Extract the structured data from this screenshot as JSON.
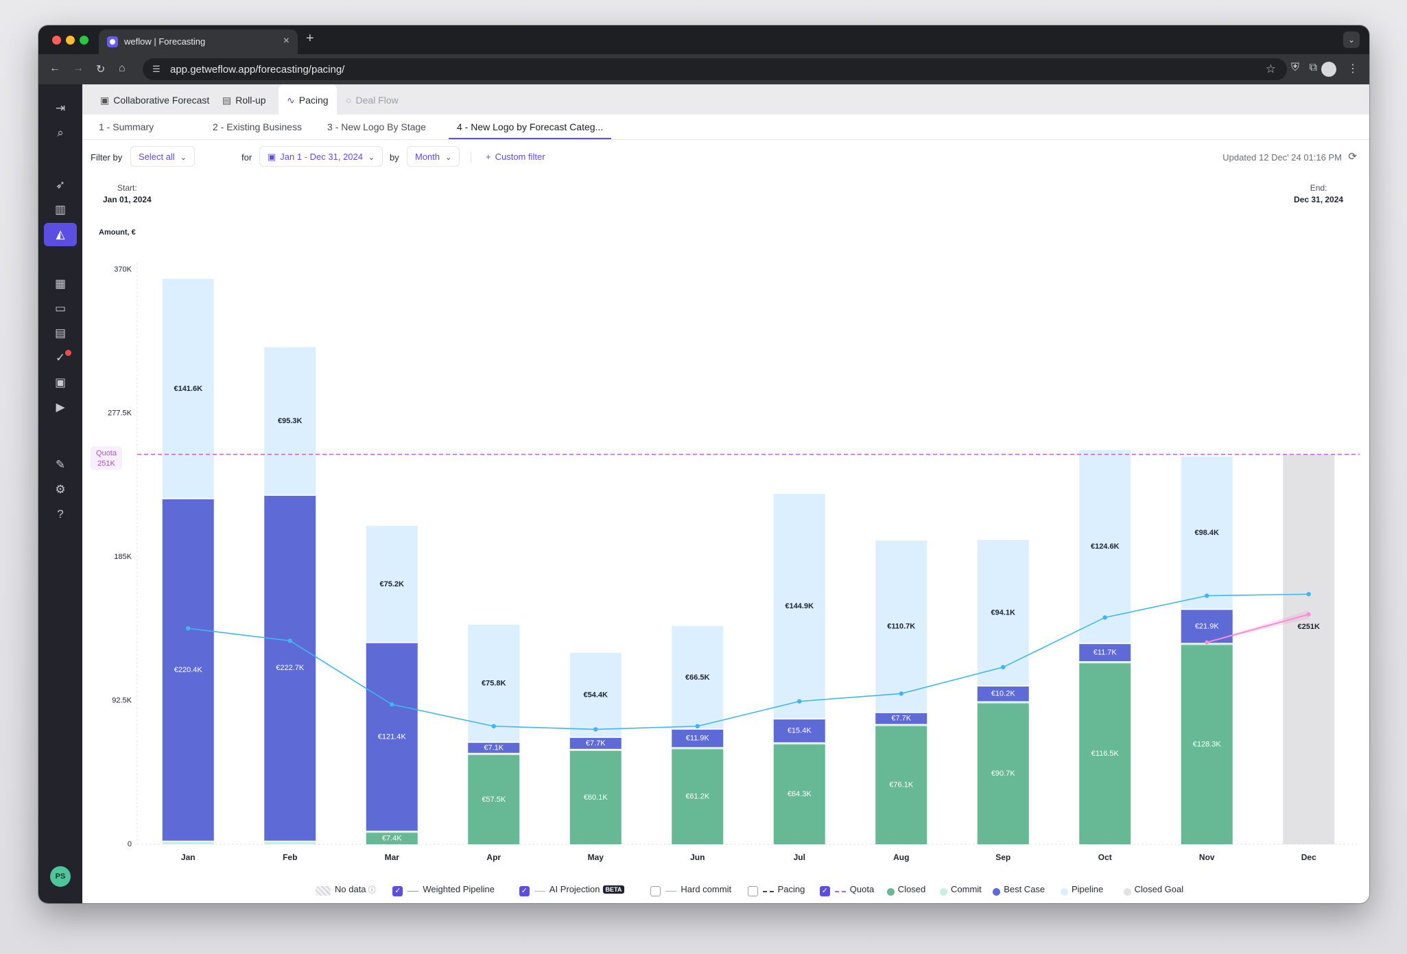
{
  "browser": {
    "tab_title": "weflow | Forecasting",
    "url": "app.getweflow.app/forecasting/pacing/"
  },
  "topnav": {
    "tabs": [
      {
        "label": "Collaborative Forecast",
        "icon": "forecast-icon"
      },
      {
        "label": "Roll-up",
        "icon": "rollup-icon"
      },
      {
        "label": "Pacing",
        "icon": "pacing-icon",
        "active": true
      },
      {
        "label": "Deal Flow",
        "icon": "search-icon",
        "disabled": true
      }
    ]
  },
  "subtabs": [
    {
      "label": "1 - Summary"
    },
    {
      "label": "2 - Existing Business"
    },
    {
      "label": "3 - New Logo By Stage"
    },
    {
      "label": "4 - New Logo by Forecast Categ...",
      "active": true
    }
  ],
  "filters": {
    "filter_by_label": "Filter by",
    "filter_by_value": "Select all",
    "for_label": "for",
    "date_range": "Jan 1 - Dec 31, 2024",
    "by_label": "by",
    "granularity": "Month",
    "custom_filter": "Custom filter",
    "updated": "Updated 12 Dec' 24 01:16 PM"
  },
  "range": {
    "start_label": "Start:",
    "start_date": "Jan 01, 2024",
    "end_label": "End:",
    "end_date": "Dec 31, 2024"
  },
  "quota_tag": {
    "label": "Quota",
    "value": "251K"
  },
  "sidebar": {
    "avatar": "PS"
  },
  "legend": [
    {
      "label": "No data",
      "kind": "hatch"
    },
    {
      "label": "Weighted Pipeline",
      "checked": true,
      "kind": "line",
      "color": "#3fb6ee"
    },
    {
      "label": "AI Projection",
      "checked": true,
      "kind": "line",
      "color": "#f58fd0",
      "badge": "BETA"
    },
    {
      "label": "Hard commit",
      "checked": false,
      "kind": "line",
      "color": "#6fd3c8"
    },
    {
      "label": "Pacing",
      "checked": false,
      "kind": "dash",
      "color": "#444444"
    },
    {
      "label": "Quota",
      "checked": true,
      "kind": "dash",
      "color": "#c75ce0"
    },
    {
      "label": "Closed",
      "kind": "dot",
      "color": "#67b894"
    },
    {
      "label": "Commit",
      "kind": "dot",
      "color": "#c8f0e2"
    },
    {
      "label": "Best Case",
      "kind": "dot",
      "color": "#5e6ad6"
    },
    {
      "label": "Pipeline",
      "kind": "dot",
      "color": "#dcefff"
    },
    {
      "label": "Closed Goal",
      "kind": "dot",
      "color": "#e2e2e4"
    }
  ],
  "chart_data": {
    "type": "bar",
    "ylabel": "Amount, €",
    "ylim": [
      0,
      370
    ],
    "yticks": [
      "0",
      "92.5K",
      "185K",
      "277.5K",
      "370K"
    ],
    "ytick_values": [
      0,
      92.5,
      185,
      277.5,
      370
    ],
    "categories": [
      "Jan",
      "Feb",
      "Mar",
      "Apr",
      "May",
      "Jun",
      "Jul",
      "Aug",
      "Sep",
      "Oct",
      "Nov",
      "Dec"
    ],
    "series": [
      {
        "name": "Closed",
        "color": "#67b894",
        "values": [
          0,
          0,
          7.4,
          57.5,
          60.1,
          61.2,
          64.3,
          76.1,
          90.7,
          116.5,
          128.3,
          0
        ],
        "labels": [
          "",
          "",
          "€7.4K",
          "€57.5K",
          "€60.1K",
          "€61.2K",
          "€64.3K",
          "€76.1K",
          "€90.7K",
          "€116.5K",
          "€128.3K",
          ""
        ]
      },
      {
        "name": "Commit",
        "color": "#c8f0e2",
        "values": [
          2,
          2,
          1,
          1,
          1,
          1,
          1,
          1,
          1,
          1,
          1,
          0
        ]
      },
      {
        "name": "Best Case",
        "color": "#5e6ad6",
        "values": [
          220.4,
          222.7,
          121.4,
          7.1,
          7.7,
          11.9,
          15.4,
          7.7,
          10.2,
          11.7,
          21.9,
          0
        ],
        "labels": [
          "€220.4K",
          "€222.7K",
          "€121.4K",
          "€7.1K",
          "€7.7K",
          "€11.9K",
          "€15.4K",
          "€7.7K",
          "€10.2K",
          "€11.7K",
          "€21.9K",
          ""
        ]
      },
      {
        "name": "Pipeline",
        "color": "#dcefff",
        "values": [
          141.6,
          95.3,
          75.2,
          75.8,
          54.4,
          66.5,
          144.9,
          110.7,
          94.1,
          124.6,
          98.4,
          0
        ],
        "labels": [
          "€141.6K",
          "€95.3K",
          "€75.2K",
          "€75.8K",
          "€54.4K",
          "€66.5K",
          "€144.9K",
          "€110.7K",
          "€94.1K",
          "€124.6K",
          "€98.4K",
          ""
        ]
      },
      {
        "name": "Closed Goal",
        "color": "#e2e2e4",
        "values": [
          0,
          0,
          0,
          0,
          0,
          0,
          0,
          0,
          0,
          0,
          0,
          251
        ],
        "labels": [
          "",
          "",
          "",
          "",
          "",
          "",
          "",
          "",
          "",
          "",
          "",
          "€251K"
        ]
      }
    ],
    "weighted_pipeline": {
      "color": "#3fb6ee",
      "values": [
        139,
        131,
        90,
        76,
        74,
        76,
        92,
        97,
        114,
        146,
        160,
        161
      ]
    },
    "ai_projection": {
      "color": "#f58fd0",
      "x": [
        "Nov",
        "Dec"
      ],
      "values": [
        130,
        148
      ]
    },
    "quota": 251,
    "grid": false,
    "legend_position": "bottom"
  }
}
